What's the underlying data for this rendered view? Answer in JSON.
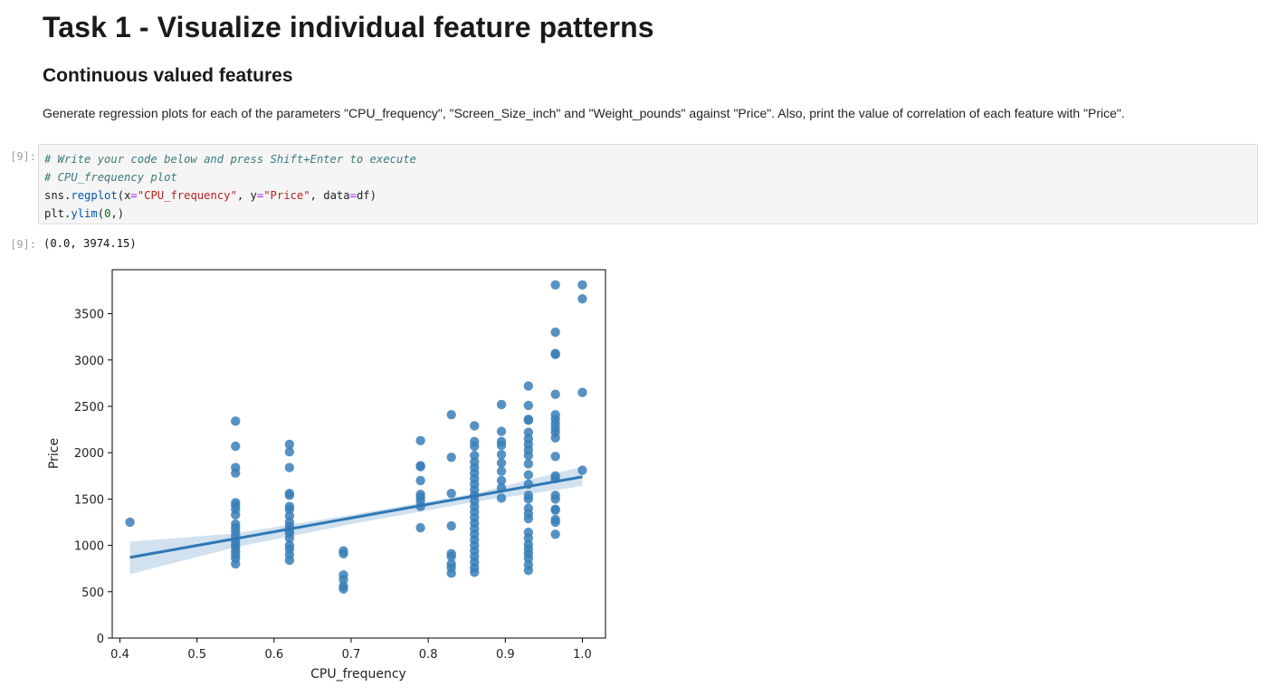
{
  "markdown": {
    "title": "Task 1 - Visualize individual feature patterns",
    "subtitle": "Continuous valued features",
    "instructions": "Generate regression plots for each of the parameters \"CPU_frequency\", \"Screen_Size_inch\" and \"Weight_pounds\" against \"Price\". Also, print the value of correlation of each feature with \"Price\"."
  },
  "cell": {
    "input_prompt": "[9]:",
    "output_prompt": "[9]:",
    "code": {
      "comment1": "# Write your code below and press Shift+Enter to execute",
      "comment2": "# CPU_frequency plot",
      "l3_obj": "sns.",
      "l3_fn": "regplot",
      "l3_a": "(x",
      "l3_eq1": "=",
      "l3_s1": "\"CPU_frequency\"",
      "l3_b": ", y",
      "l3_eq2": "=",
      "l3_s2": "\"Price\"",
      "l3_c": ", data",
      "l3_eq3": "=",
      "l3_d": "df)",
      "l4_obj": "plt.",
      "l4_fn": "ylim",
      "l4_a": "(",
      "l4_num": "0",
      "l4_b": ",)"
    },
    "output_text": "(0.0, 3974.15)"
  },
  "chart_data": {
    "type": "scatter",
    "title": "",
    "xlabel": "CPU_frequency",
    "ylabel": "Price",
    "xlim": [
      0.39,
      1.03
    ],
    "ylim": [
      0,
      3974.15
    ],
    "xticks": [
      0.4,
      0.5,
      0.6,
      0.7,
      0.8,
      0.9,
      1.0
    ],
    "xtick_labels": [
      "0.4",
      "0.5",
      "0.6",
      "0.7",
      "0.8",
      "0.9",
      "1.0"
    ],
    "yticks": [
      0,
      500,
      1000,
      1500,
      2000,
      2500,
      3000,
      3500
    ],
    "ytick_labels": [
      "0",
      "500",
      "1000",
      "1500",
      "2000",
      "2500",
      "3000",
      "3500"
    ],
    "grid": false,
    "color": "#3a7fb8",
    "line_color": "#2f78b5",
    "band_color": "#c9dced",
    "regression": {
      "x": [
        0.413,
        1.0
      ],
      "y": [
        870,
        1740
      ]
    },
    "ci_band": {
      "x": [
        0.413,
        0.55,
        0.7,
        0.86,
        1.0
      ],
      "upper": [
        1040,
        1130,
        1330,
        1560,
        1850
      ],
      "lower": [
        690,
        980,
        1230,
        1470,
        1640
      ]
    },
    "points": [
      {
        "x": 0.413,
        "y": 1250
      },
      {
        "x": 0.55,
        "y": 2340
      },
      {
        "x": 0.55,
        "y": 2070
      },
      {
        "x": 0.55,
        "y": 1840
      },
      {
        "x": 0.55,
        "y": 1780
      },
      {
        "x": 0.55,
        "y": 1460
      },
      {
        "x": 0.55,
        "y": 1430
      },
      {
        "x": 0.55,
        "y": 1390
      },
      {
        "x": 0.55,
        "y": 1330
      },
      {
        "x": 0.55,
        "y": 1230
      },
      {
        "x": 0.55,
        "y": 1190
      },
      {
        "x": 0.55,
        "y": 1150
      },
      {
        "x": 0.55,
        "y": 1100
      },
      {
        "x": 0.55,
        "y": 1050
      },
      {
        "x": 0.55,
        "y": 1010
      },
      {
        "x": 0.55,
        "y": 980
      },
      {
        "x": 0.55,
        "y": 940
      },
      {
        "x": 0.55,
        "y": 900
      },
      {
        "x": 0.55,
        "y": 860
      },
      {
        "x": 0.55,
        "y": 800
      },
      {
        "x": 0.62,
        "y": 2090
      },
      {
        "x": 0.62,
        "y": 2010
      },
      {
        "x": 0.62,
        "y": 1840
      },
      {
        "x": 0.62,
        "y": 1560
      },
      {
        "x": 0.62,
        "y": 1540
      },
      {
        "x": 0.62,
        "y": 1420
      },
      {
        "x": 0.62,
        "y": 1390
      },
      {
        "x": 0.62,
        "y": 1320
      },
      {
        "x": 0.62,
        "y": 1250
      },
      {
        "x": 0.62,
        "y": 1200
      },
      {
        "x": 0.62,
        "y": 1160
      },
      {
        "x": 0.62,
        "y": 1130
      },
      {
        "x": 0.62,
        "y": 1080
      },
      {
        "x": 0.62,
        "y": 1000
      },
      {
        "x": 0.62,
        "y": 960
      },
      {
        "x": 0.62,
        "y": 900
      },
      {
        "x": 0.62,
        "y": 840
      },
      {
        "x": 0.69,
        "y": 940
      },
      {
        "x": 0.69,
        "y": 910
      },
      {
        "x": 0.69,
        "y": 680
      },
      {
        "x": 0.69,
        "y": 630
      },
      {
        "x": 0.69,
        "y": 560
      },
      {
        "x": 0.69,
        "y": 530
      },
      {
        "x": 0.79,
        "y": 2130
      },
      {
        "x": 0.79,
        "y": 1860
      },
      {
        "x": 0.79,
        "y": 1850
      },
      {
        "x": 0.79,
        "y": 1700
      },
      {
        "x": 0.79,
        "y": 1550
      },
      {
        "x": 0.79,
        "y": 1520
      },
      {
        "x": 0.79,
        "y": 1480
      },
      {
        "x": 0.79,
        "y": 1420
      },
      {
        "x": 0.79,
        "y": 1190
      },
      {
        "x": 0.83,
        "y": 2410
      },
      {
        "x": 0.83,
        "y": 1950
      },
      {
        "x": 0.83,
        "y": 1560
      },
      {
        "x": 0.83,
        "y": 1210
      },
      {
        "x": 0.83,
        "y": 910
      },
      {
        "x": 0.83,
        "y": 880
      },
      {
        "x": 0.83,
        "y": 800
      },
      {
        "x": 0.83,
        "y": 760
      },
      {
        "x": 0.83,
        "y": 700
      },
      {
        "x": 0.86,
        "y": 2290
      },
      {
        "x": 0.86,
        "y": 2120
      },
      {
        "x": 0.86,
        "y": 2070
      },
      {
        "x": 0.86,
        "y": 1970
      },
      {
        "x": 0.86,
        "y": 1900
      },
      {
        "x": 0.86,
        "y": 1840
      },
      {
        "x": 0.86,
        "y": 1780
      },
      {
        "x": 0.86,
        "y": 1720
      },
      {
        "x": 0.86,
        "y": 1660
      },
      {
        "x": 0.86,
        "y": 1600
      },
      {
        "x": 0.86,
        "y": 1540
      },
      {
        "x": 0.86,
        "y": 1480
      },
      {
        "x": 0.86,
        "y": 1420
      },
      {
        "x": 0.86,
        "y": 1360
      },
      {
        "x": 0.86,
        "y": 1300
      },
      {
        "x": 0.86,
        "y": 1240
      },
      {
        "x": 0.86,
        "y": 1180
      },
      {
        "x": 0.86,
        "y": 1120
      },
      {
        "x": 0.86,
        "y": 1060
      },
      {
        "x": 0.86,
        "y": 1000
      },
      {
        "x": 0.86,
        "y": 940
      },
      {
        "x": 0.86,
        "y": 880
      },
      {
        "x": 0.86,
        "y": 820
      },
      {
        "x": 0.86,
        "y": 760
      },
      {
        "x": 0.86,
        "y": 710
      },
      {
        "x": 0.895,
        "y": 2520
      },
      {
        "x": 0.895,
        "y": 2230
      },
      {
        "x": 0.895,
        "y": 2120
      },
      {
        "x": 0.895,
        "y": 2080
      },
      {
        "x": 0.895,
        "y": 1980
      },
      {
        "x": 0.895,
        "y": 1890
      },
      {
        "x": 0.895,
        "y": 1800
      },
      {
        "x": 0.895,
        "y": 1700
      },
      {
        "x": 0.895,
        "y": 1620
      },
      {
        "x": 0.895,
        "y": 1510
      },
      {
        "x": 0.93,
        "y": 2720
      },
      {
        "x": 0.93,
        "y": 2510
      },
      {
        "x": 0.93,
        "y": 2360
      },
      {
        "x": 0.93,
        "y": 2350
      },
      {
        "x": 0.93,
        "y": 2220
      },
      {
        "x": 0.93,
        "y": 2150
      },
      {
        "x": 0.93,
        "y": 2090
      },
      {
        "x": 0.93,
        "y": 2030
      },
      {
        "x": 0.93,
        "y": 1970
      },
      {
        "x": 0.93,
        "y": 1880
      },
      {
        "x": 0.93,
        "y": 1760
      },
      {
        "x": 0.93,
        "y": 1660
      },
      {
        "x": 0.93,
        "y": 1540
      },
      {
        "x": 0.93,
        "y": 1500
      },
      {
        "x": 0.93,
        "y": 1400
      },
      {
        "x": 0.93,
        "y": 1340
      },
      {
        "x": 0.93,
        "y": 1290
      },
      {
        "x": 0.93,
        "y": 1140
      },
      {
        "x": 0.93,
        "y": 1080
      },
      {
        "x": 0.93,
        "y": 1010
      },
      {
        "x": 0.93,
        "y": 960
      },
      {
        "x": 0.93,
        "y": 910
      },
      {
        "x": 0.93,
        "y": 860
      },
      {
        "x": 0.93,
        "y": 790
      },
      {
        "x": 0.93,
        "y": 730
      },
      {
        "x": 0.965,
        "y": 3810
      },
      {
        "x": 0.965,
        "y": 3300
      },
      {
        "x": 0.965,
        "y": 3070
      },
      {
        "x": 0.965,
        "y": 3060
      },
      {
        "x": 0.965,
        "y": 2630
      },
      {
        "x": 0.965,
        "y": 2410
      },
      {
        "x": 0.965,
        "y": 2360
      },
      {
        "x": 0.965,
        "y": 2310
      },
      {
        "x": 0.965,
        "y": 2260
      },
      {
        "x": 0.965,
        "y": 2220
      },
      {
        "x": 0.965,
        "y": 2160
      },
      {
        "x": 0.965,
        "y": 1960
      },
      {
        "x": 0.965,
        "y": 1750
      },
      {
        "x": 0.965,
        "y": 1720
      },
      {
        "x": 0.965,
        "y": 1540
      },
      {
        "x": 0.965,
        "y": 1500
      },
      {
        "x": 0.965,
        "y": 1390
      },
      {
        "x": 0.965,
        "y": 1380
      },
      {
        "x": 0.965,
        "y": 1280
      },
      {
        "x": 0.965,
        "y": 1250
      },
      {
        "x": 0.965,
        "y": 1120
      },
      {
        "x": 1.0,
        "y": 3810
      },
      {
        "x": 1.0,
        "y": 3660
      },
      {
        "x": 1.0,
        "y": 2650
      },
      {
        "x": 1.0,
        "y": 1810
      }
    ]
  }
}
